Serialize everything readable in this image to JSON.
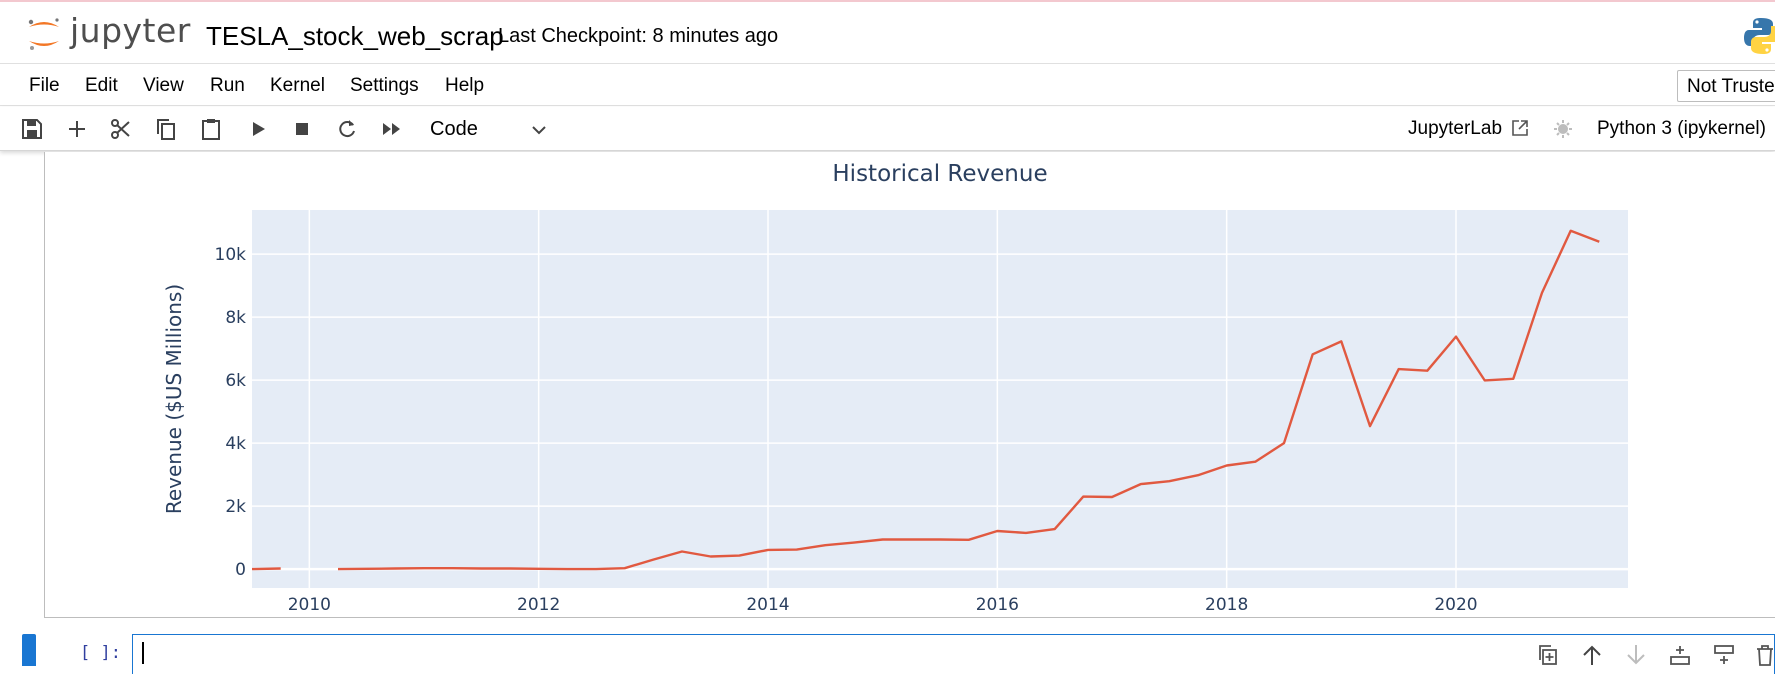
{
  "header": {
    "logo_text": "jupyter",
    "notebook_name": "TESLA_stock_web_scrap",
    "checkpoint": "Last Checkpoint: 8 minutes ago"
  },
  "menu": {
    "items": [
      "File",
      "Edit",
      "View",
      "Run",
      "Kernel",
      "Settings",
      "Help"
    ],
    "trust_label": "Not Trusted"
  },
  "toolbar": {
    "icons": [
      "save-icon",
      "add-icon",
      "cut-icon",
      "copy-icon",
      "paste-icon",
      "run-icon",
      "stop-icon",
      "restart-icon",
      "fast-forward-icon"
    ],
    "cell_type": "Code",
    "jupyterlab_label": "JupyterLab",
    "kernel_name": "Python 3 (ipykernel)"
  },
  "cell": {
    "prompt": "[ ]:",
    "tool_icons": [
      "duplicate-icon",
      "move-up-icon",
      "move-down-icon",
      "insert-above-icon",
      "insert-below-icon",
      "delete-icon"
    ]
  },
  "colors": {
    "line": "#e15940",
    "plot_bg": "#e5ecf6",
    "text": "#2a3f5f",
    "accent": "#1976d2",
    "logo_orange": "#f37726"
  },
  "chart_data": {
    "type": "line",
    "title": "Historical Revenue",
    "xlabel": "",
    "ylabel": "Revenue ($US Millions)",
    "xlim": [
      2009.5,
      2021.5
    ],
    "ylim": [
      -600,
      11400
    ],
    "x_ticks": [
      2010,
      2012,
      2014,
      2016,
      2018,
      2020
    ],
    "x_tick_labels": [
      "2010",
      "2012",
      "2014",
      "2016",
      "2018",
      "2020"
    ],
    "y_ticks": [
      0,
      2000,
      4000,
      6000,
      8000,
      10000
    ],
    "y_tick_labels": [
      "0",
      "2k",
      "4k",
      "6k",
      "8k",
      "10k"
    ],
    "grid": true,
    "segments": [
      {
        "x": [
          2009.5,
          2009.75
        ],
        "y": [
          0,
          20
        ]
      },
      {
        "x": [
          2010.25,
          2010.5,
          2010.75,
          2011.0,
          2011.25,
          2011.5,
          2011.75,
          2012.0,
          2012.25,
          2012.5,
          2012.75,
          2013.0,
          2013.25,
          2013.5,
          2013.75,
          2014.0,
          2014.25,
          2014.5,
          2014.75,
          2015.0,
          2015.25,
          2015.5,
          2015.75,
          2016.0,
          2016.25,
          2016.5,
          2016.75,
          2017.0,
          2017.25,
          2017.5,
          2017.75,
          2018.0,
          2018.25,
          2018.5,
          2018.75,
          2019.0,
          2019.25,
          2019.5,
          2019.75,
          2020.0,
          2020.25,
          2020.5,
          2020.75,
          2021.0,
          2021.25
        ],
        "y": [
          0,
          10,
          20,
          30,
          30,
          20,
          20,
          10,
          0,
          0,
          30,
          300,
          560,
          400,
          430,
          610,
          620,
          760,
          840,
          940,
          940,
          940,
          930,
          1210,
          1150,
          1270,
          2300,
          2290,
          2700,
          2790,
          2980,
          3290,
          3410,
          4000,
          6820,
          7230,
          4540,
          6350,
          6300,
          7380,
          5990,
          6040,
          8770,
          10740,
          10390
        ]
      }
    ]
  }
}
